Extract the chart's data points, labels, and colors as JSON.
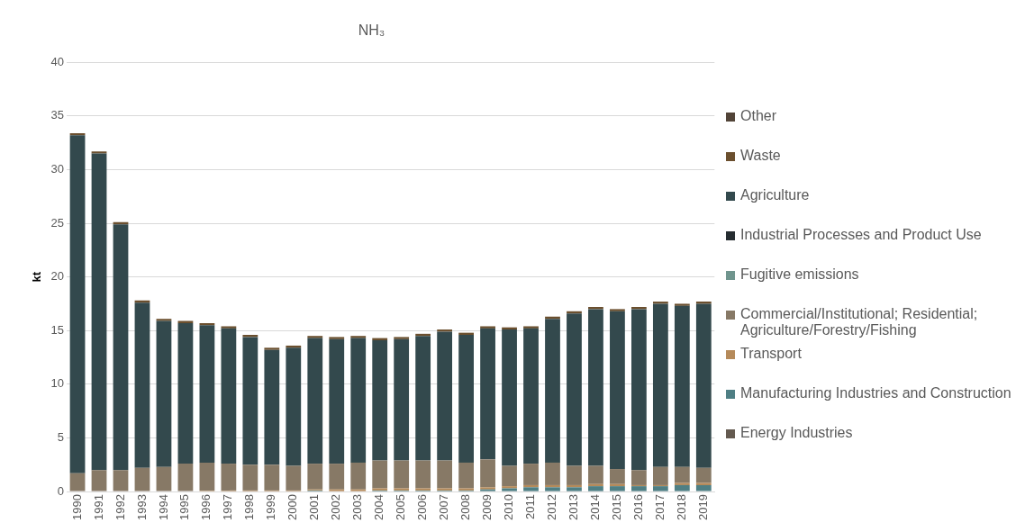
{
  "chart_data": {
    "type": "bar",
    "title": "NH₃",
    "ylabel": "kt",
    "stacked": true,
    "grid": "y",
    "legend": "right",
    "categories": [
      "1990",
      "1991",
      "1992",
      "1993",
      "1994",
      "1995",
      "1996",
      "1997",
      "1998",
      "1999",
      "2000",
      "2001",
      "2002",
      "2003",
      "2004",
      "2005",
      "2006",
      "2007",
      "2008",
      "2009",
      "2010",
      "2011",
      "2012",
      "2013",
      "2014",
      "2015",
      "2016",
      "2017",
      "2018",
      "2019"
    ],
    "ylim": [
      0,
      40
    ],
    "yticks": [
      0,
      5,
      10,
      15,
      20,
      25,
      30,
      35,
      40
    ],
    "series": [
      {
        "name": "Energy Industries",
        "color": "#645a50",
        "values": [
          0,
          0,
          0,
          0,
          0,
          0,
          0,
          0,
          0,
          0,
          0,
          0,
          0,
          0,
          0,
          0,
          0,
          0,
          0,
          0,
          0,
          0,
          0,
          0,
          0,
          0,
          0,
          0,
          0,
          0
        ]
      },
      {
        "name": "Manufacturing Industries and Construction",
        "color": "#4f7f84",
        "values": [
          0,
          0,
          0,
          0,
          0,
          0,
          0,
          0,
          0,
          0,
          0,
          0.1,
          0,
          0,
          0.1,
          0.1,
          0.1,
          0.1,
          0.1,
          0.2,
          0.3,
          0.4,
          0.4,
          0.4,
          0.5,
          0.5,
          0.5,
          0.5,
          0.6,
          0.6
        ]
      },
      {
        "name": "Transport",
        "color": "#b58a5a",
        "values": [
          0,
          0,
          0,
          0,
          0,
          0,
          0.1,
          0.1,
          0.1,
          0.1,
          0.1,
          0.1,
          0.2,
          0.2,
          0.2,
          0.2,
          0.2,
          0.2,
          0.2,
          0.2,
          0.2,
          0.2,
          0.2,
          0.2,
          0.2,
          0.2,
          0.1,
          0.1,
          0.2,
          0.2
        ]
      },
      {
        "name": "Commercial/Institutional; Residential; Agriculture/Forestry/Fishing",
        "color": "#877966",
        "values": [
          1.7,
          2.0,
          2.0,
          2.2,
          2.3,
          2.6,
          2.6,
          2.5,
          2.4,
          2.4,
          2.3,
          2.4,
          2.4,
          2.5,
          2.6,
          2.6,
          2.6,
          2.6,
          2.4,
          2.6,
          1.9,
          2.0,
          2.1,
          1.8,
          1.7,
          1.4,
          1.4,
          1.7,
          1.5,
          1.4
        ]
      },
      {
        "name": "Fugitive emissions",
        "color": "#70958e",
        "values": [
          0,
          0,
          0,
          0,
          0,
          0,
          0,
          0,
          0,
          0,
          0,
          0,
          0,
          0,
          0,
          0,
          0,
          0,
          0,
          0,
          0,
          0,
          0,
          0,
          0,
          0,
          0,
          0,
          0,
          0
        ]
      },
      {
        "name": "Industrial Processes and Product Use",
        "color": "#262d31",
        "values": [
          0,
          0,
          0,
          0,
          0,
          0,
          0,
          0,
          0,
          0,
          0,
          0,
          0,
          0,
          0,
          0,
          0,
          0,
          0,
          0,
          0,
          0,
          0,
          0,
          0,
          0,
          0,
          0,
          0,
          0
        ]
      },
      {
        "name": "Agriculture",
        "color": "#33494d",
        "values": [
          31.5,
          29.5,
          22.9,
          15.4,
          13.6,
          13.1,
          12.8,
          12.6,
          11.9,
          10.7,
          11.0,
          11.7,
          11.6,
          11.6,
          11.2,
          11.3,
          11.6,
          12.0,
          11.9,
          12.2,
          12.7,
          12.6,
          13.4,
          14.2,
          14.6,
          14.7,
          15.0,
          15.2,
          15.0,
          15.3
        ]
      },
      {
        "name": "Waste",
        "color": "#6b4f2e",
        "values": [
          0.2,
          0.2,
          0.2,
          0.2,
          0.2,
          0.2,
          0.2,
          0.2,
          0.2,
          0.2,
          0.2,
          0.2,
          0.2,
          0.2,
          0.2,
          0.2,
          0.2,
          0.2,
          0.2,
          0.2,
          0.2,
          0.2,
          0.2,
          0.2,
          0.2,
          0.2,
          0.2,
          0.2,
          0.2,
          0.2
        ]
      },
      {
        "name": "Other",
        "color": "#524438",
        "values": [
          0,
          0,
          0,
          0,
          0,
          0,
          0,
          0,
          0,
          0,
          0,
          0,
          0,
          0,
          0,
          0,
          0,
          0,
          0,
          0,
          0,
          0,
          0,
          0,
          0,
          0,
          0,
          0,
          0,
          0
        ]
      }
    ]
  }
}
